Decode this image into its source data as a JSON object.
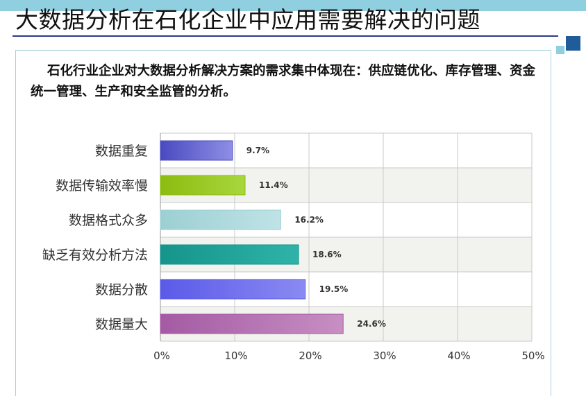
{
  "slide": {
    "title": "大数据分析在石化企业中应用需要解决的问题",
    "intro": "石化行业企业对大数据分析解决方案的需求集中体现在：供应链优化、库存管理、资金统一管理、生产和安全监管的分析。"
  },
  "colors": {
    "top_bar": "#8fcfe0",
    "underline": "#2c3a8a",
    "square_dark": "#1f5c99",
    "square_light": "#8fcfe0",
    "grid": "#c9c9c9",
    "band": "#f2f2ee"
  },
  "chart_data": {
    "type": "bar",
    "orientation": "horizontal",
    "categories": [
      "数据重复",
      "数据传输效率慢",
      "数据格式众多",
      "缺乏有效分析方法",
      "数据分散",
      "数据量大"
    ],
    "values": [
      9.7,
      11.4,
      16.2,
      18.6,
      19.5,
      24.6
    ],
    "value_labels": [
      "9.7%",
      "11.4%",
      "16.2%",
      "18.6%",
      "19.5%",
      "24.6%"
    ],
    "bar_colors": [
      "#8e8ee6",
      "#a8d63e",
      "#bfe3e6",
      "#2fb3a9",
      "#8a8af2",
      "#c78fc3"
    ],
    "bar_dark_colors": [
      "#4a4ac0",
      "#8cbc10",
      "#9ccfd3",
      "#15948b",
      "#5a5ae8",
      "#a45aa3"
    ],
    "xlim": [
      0,
      50
    ],
    "xticks": [
      "0%",
      "10%",
      "20%",
      "30%",
      "40%",
      "50%"
    ],
    "xtick_values": [
      0,
      10,
      20,
      30,
      40,
      50
    ],
    "grid": true,
    "legend": false
  }
}
